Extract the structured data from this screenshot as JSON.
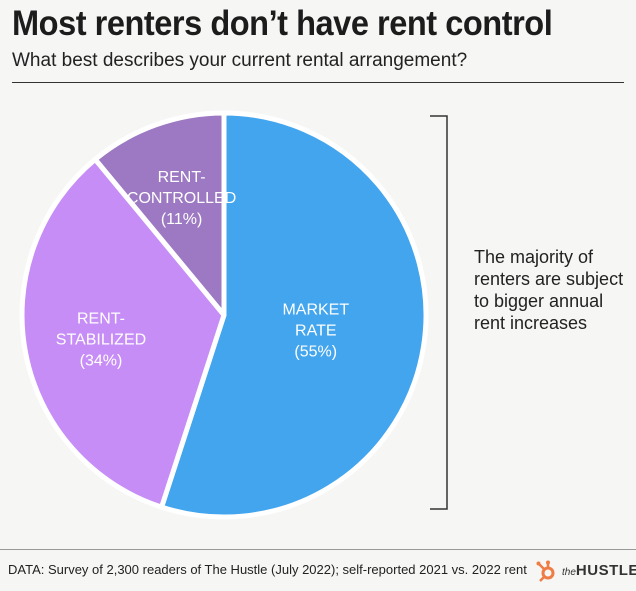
{
  "title": "Most renters don’t have rent control",
  "subtitle": "What best describes your current rental arrangement?",
  "chart_data": {
    "type": "pie",
    "title": "Most renters don’t have rent control",
    "subtitle": "What best describes your current rental arrangement?",
    "slices": [
      {
        "label_lines": [
          "MARKET",
          "RATE",
          "(55%)"
        ],
        "value": 55,
        "color": "#42a5ee",
        "text_color": "#ffffff"
      },
      {
        "label_lines": [
          "RENT-",
          "STABILIZED",
          "(34%)"
        ],
        "value": 34,
        "color": "#c78df7",
        "text_color": "#ffffff"
      },
      {
        "label_lines": [
          "RENT-",
          "CONTROLLED",
          "(11%)"
        ],
        "value": 11,
        "color": "#9c79c2",
        "text_color": "#ffffff"
      }
    ],
    "annotation": "The majority of renters are subject to bigger annual rent increases"
  },
  "source": "DATA: Survey of 2,300 readers of The Hustle (July 2022); self-reported 2021 vs. 2022 rent",
  "logo": {
    "prefix": "the",
    "name": "HUSTLE",
    "icon": "hubspot-sprocket-icon",
    "icon_color": "#ef7b45"
  }
}
